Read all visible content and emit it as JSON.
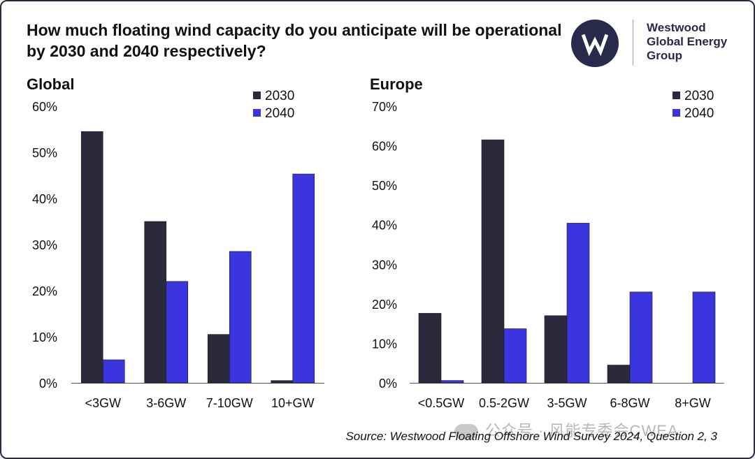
{
  "title": "How much floating wind capacity do you anticipate will be operational by 2030 and 2040 respectively?",
  "logo": {
    "company_name": "Westwood\nGlobal Energy\nGroup",
    "brand_color": "#272a4a"
  },
  "source": "Source: Westwood Floating Offshore Wind Survey 2024, Question 2, 3",
  "watermark": "公众号 · 风能专委会CWEA",
  "colors": {
    "series_2030": "#2a2a3c",
    "series_2040": "#3b35e0",
    "axis": "#555555",
    "text": "#111111"
  },
  "chart_data": [
    {
      "type": "bar",
      "title": "Global",
      "categories": [
        "<3GW",
        "3-6GW",
        "7-10GW",
        "10+GW"
      ],
      "series": [
        {
          "name": "2030",
          "values": [
            54.5,
            35,
            10.5,
            0.5
          ]
        },
        {
          "name": "2040",
          "values": [
            5,
            22,
            28.5,
            45.3
          ]
        }
      ],
      "ylim": [
        0,
        60
      ],
      "yticks": [
        0,
        10,
        20,
        30,
        40,
        50,
        60
      ],
      "tick_format": "percent",
      "legend": "top-right",
      "grid": false
    },
    {
      "type": "bar",
      "title": "Europe",
      "categories": [
        "<0.5GW",
        "0.5-2GW",
        "3-5GW",
        "6-8GW",
        "8+GW"
      ],
      "series": [
        {
          "name": "2030",
          "values": [
            17.6,
            61.5,
            17,
            4.5,
            null
          ]
        },
        {
          "name": "2040",
          "values": [
            0.6,
            13.7,
            40.4,
            23,
            23
          ]
        }
      ],
      "ylim": [
        0,
        70
      ],
      "yticks": [
        0,
        10,
        20,
        30,
        40,
        50,
        60,
        70
      ],
      "tick_format": "percent",
      "legend": "top-right",
      "grid": false
    }
  ]
}
